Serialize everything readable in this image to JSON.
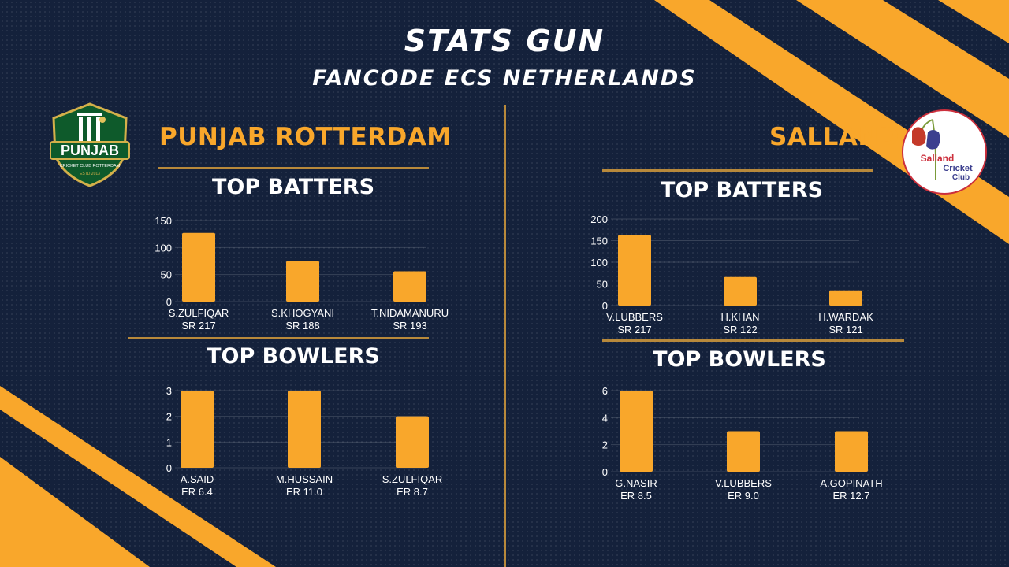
{
  "header": {
    "title": "STATS GUN",
    "subtitle": "FANCODE ECS NETHERLANDS"
  },
  "colors": {
    "background": "#14213b",
    "accent": "#f9a72b",
    "divider": "#b8893b",
    "text": "#ffffff",
    "bar": "#f9a72b"
  },
  "teams": {
    "left": {
      "name": "PUNJAB ROTTERDAM",
      "logo": {
        "icon": "cricket-wicket-shield-icon",
        "text": "PUNJAB",
        "subtext": "CRICKET CLUB ROTTERDAM",
        "year": "ESTD 2013"
      },
      "batters_title": "TOP BATTERS",
      "bowlers_title": "TOP BOWLERS"
    },
    "right": {
      "name": "SALLAND",
      "logo": {
        "icon": "flower-bell-icon",
        "line1": "Salland",
        "line2": "Cricket",
        "line3": "Club"
      },
      "batters_title": "TOP BATTERS",
      "bowlers_title": "TOP BOWLERS"
    }
  },
  "chart_data": [
    {
      "type": "bar",
      "team": "PUNJAB ROTTERDAM",
      "title": "TOP BATTERS",
      "categories": [
        "S.ZULFIQAR",
        "S.KHOGYANI",
        "T.NIDAMANURU"
      ],
      "sublabels": [
        "SR 217",
        "SR 188",
        "SR 193"
      ],
      "values": [
        127,
        75,
        56
      ],
      "yticks": [
        0,
        50,
        100,
        150
      ],
      "ylim": [
        0,
        150
      ],
      "grid": true
    },
    {
      "type": "bar",
      "team": "PUNJAB ROTTERDAM",
      "title": "TOP BOWLERS",
      "categories": [
        "A.SAID",
        "M.HUSSAIN",
        "S.ZULFIQAR"
      ],
      "sublabels": [
        "ER 6.4",
        "ER 11.0",
        "ER 8.7"
      ],
      "values": [
        3,
        3,
        2
      ],
      "yticks": [
        0,
        1,
        2,
        3
      ],
      "ylim": [
        0,
        3
      ],
      "grid": true
    },
    {
      "type": "bar",
      "team": "SALLAND",
      "title": "TOP BATTERS",
      "categories": [
        "V.LUBBERS",
        "H.KHAN",
        "H.WARDAK"
      ],
      "sublabels": [
        "SR 217",
        "SR 122",
        "SR 121"
      ],
      "values": [
        163,
        66,
        35
      ],
      "yticks": [
        0,
        50,
        100,
        150,
        200
      ],
      "ylim": [
        0,
        200
      ],
      "grid": true
    },
    {
      "type": "bar",
      "team": "SALLAND",
      "title": "TOP BOWLERS",
      "categories": [
        "G.NASIR",
        "V.LUBBERS",
        "A.GOPINATH"
      ],
      "sublabels": [
        "ER 8.5",
        "ER 9.0",
        "ER 12.7"
      ],
      "values": [
        6,
        3,
        3
      ],
      "yticks": [
        0,
        2,
        4,
        6
      ],
      "ylim": [
        0,
        6
      ],
      "grid": true
    }
  ]
}
